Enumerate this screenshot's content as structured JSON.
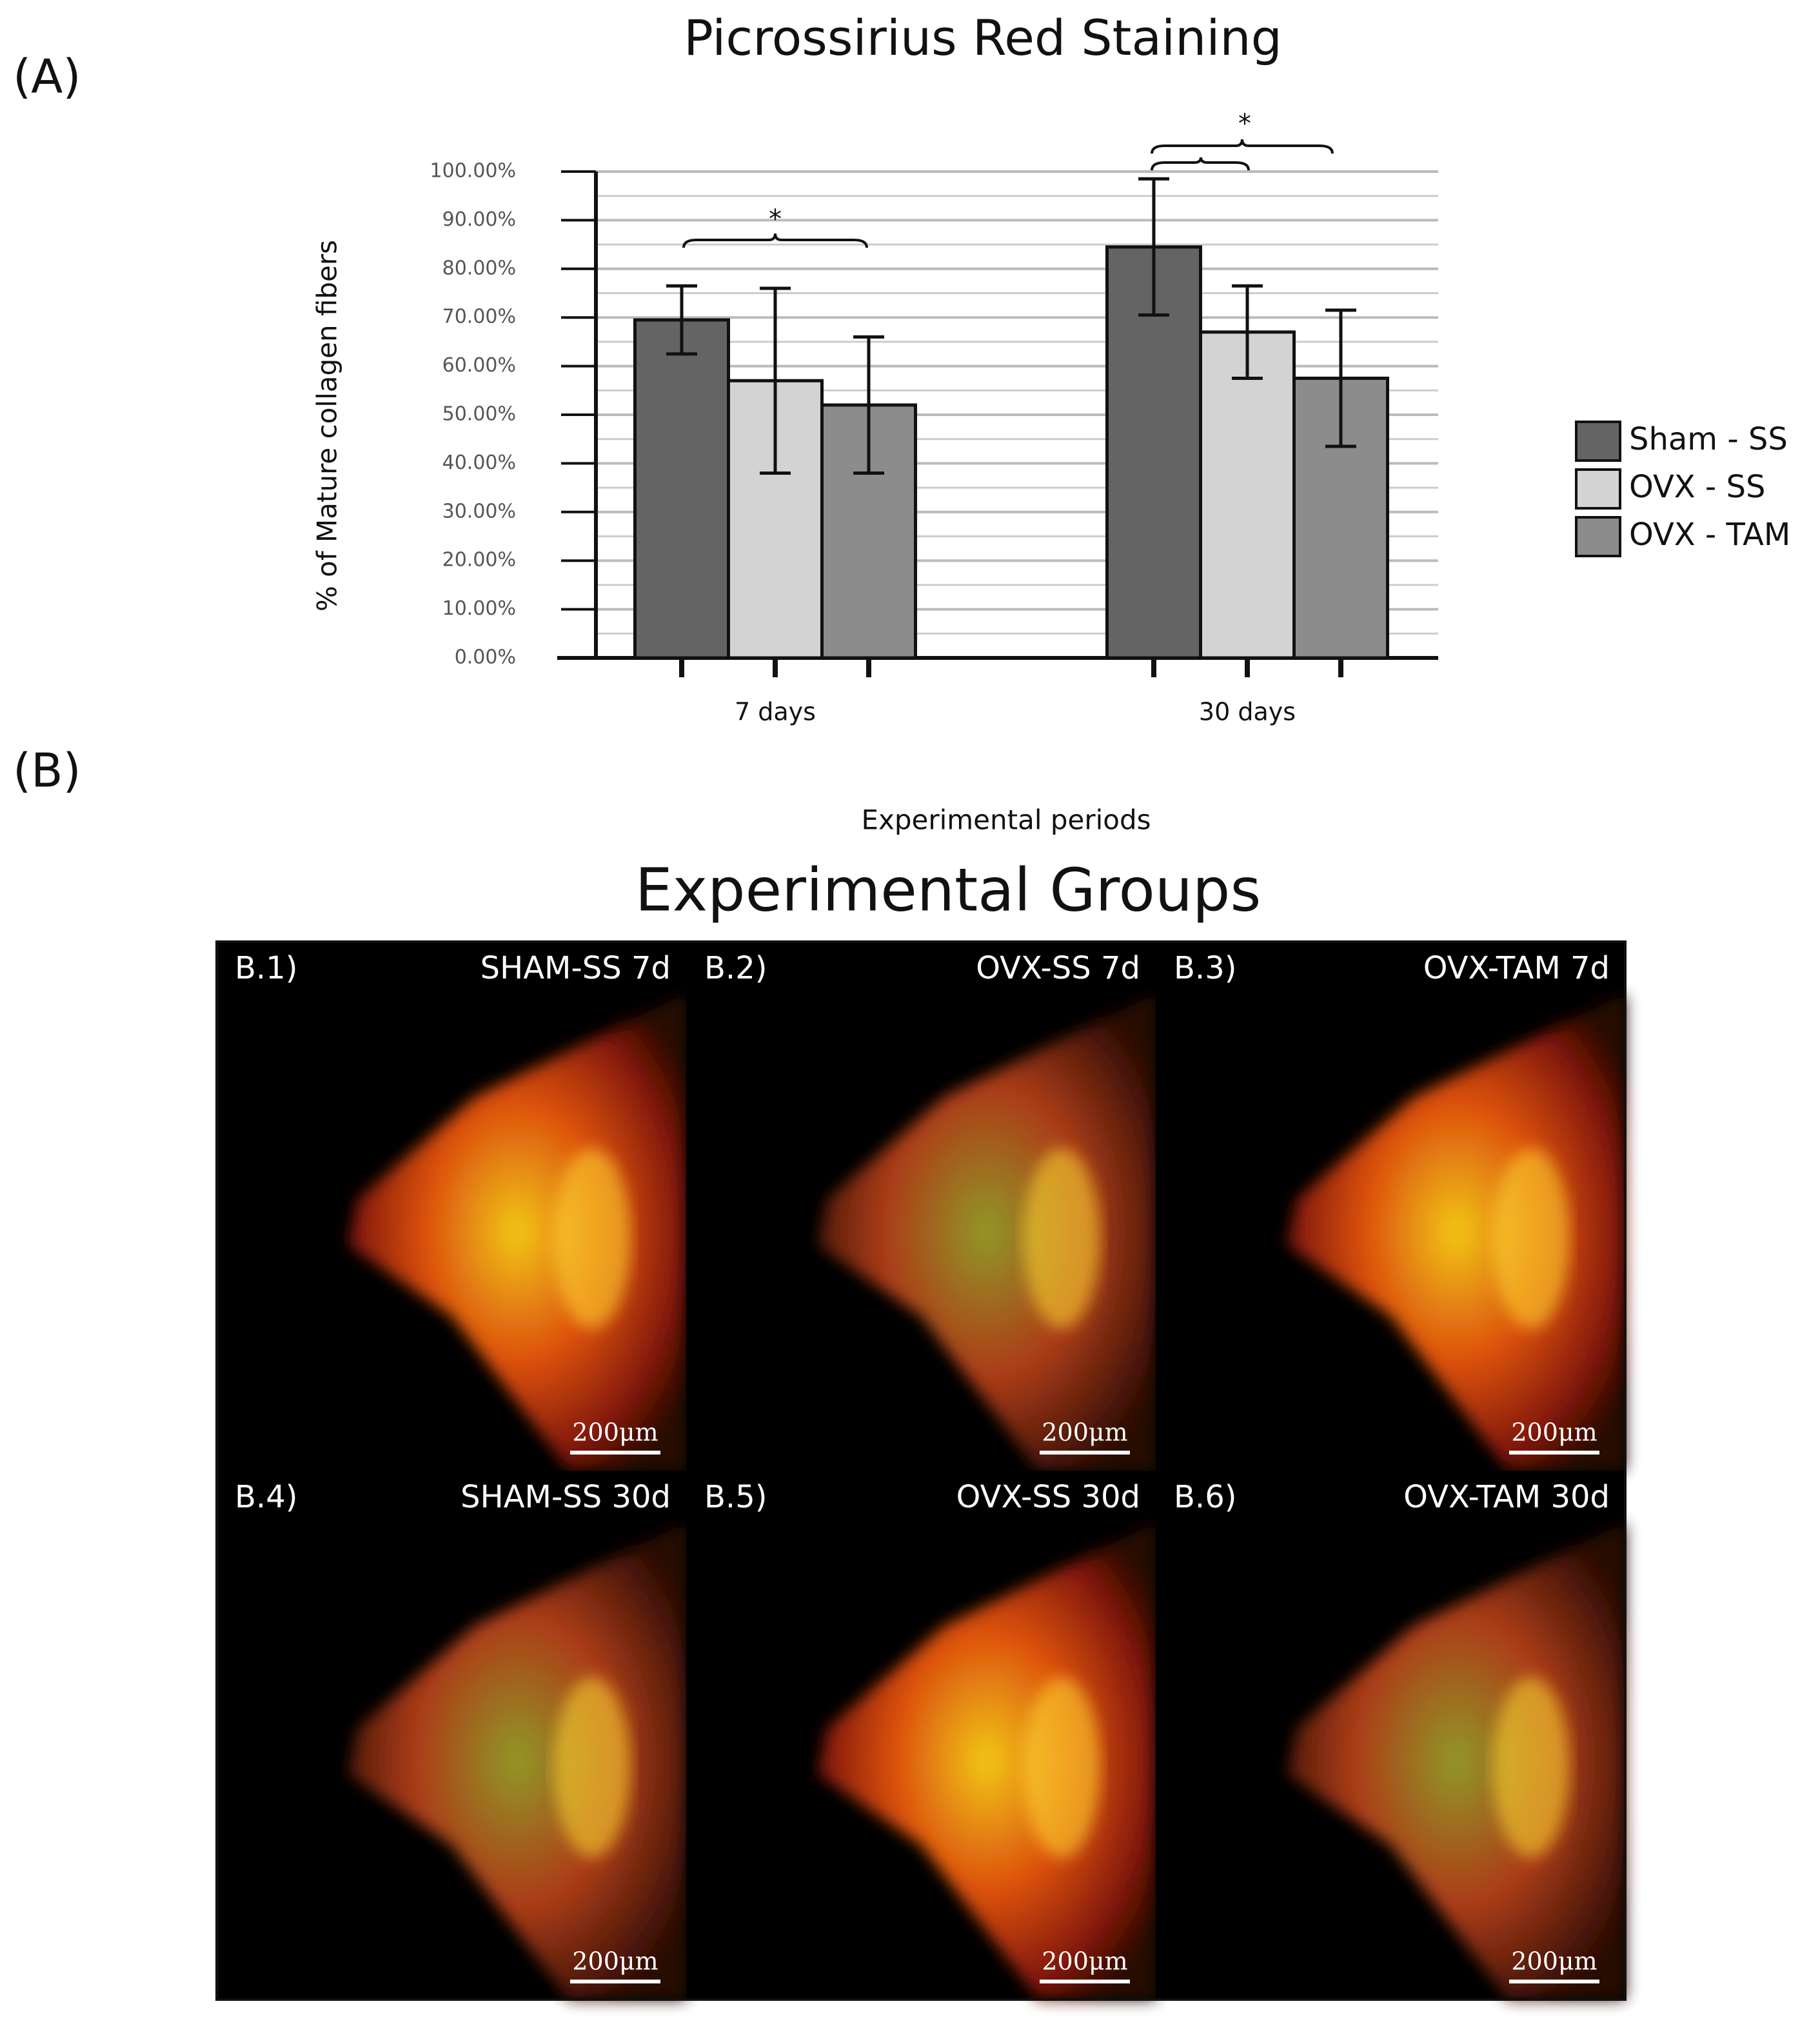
{
  "chart_data": {
    "type": "bar",
    "title": "Picrossirius Red Staining",
    "x_label": "Experimental periods",
    "y_label": "% of Mature collagen fibers",
    "categories": [
      "7 days",
      "30 days"
    ],
    "series": [
      {
        "name": "Sham - SS",
        "color": "#646464",
        "values": [
          69.5,
          84.5
        ],
        "error": [
          7,
          14
        ]
      },
      {
        "name": "OVX - SS",
        "color": "#d3d3d3",
        "values": [
          57,
          67
        ],
        "error": [
          19,
          9.5
        ]
      },
      {
        "name": "OVX - TAM",
        "color": "#8c8c8c",
        "values": [
          52,
          57.5
        ],
        "error": [
          14,
          14
        ]
      }
    ],
    "ylim": [
      0,
      100
    ],
    "yticks": [
      {
        "value": 0,
        "label": "0.00%"
      },
      {
        "value": 10,
        "label": "10.00%"
      },
      {
        "value": 20,
        "label": "20.00%"
      },
      {
        "value": 30,
        "label": "30.00%"
      },
      {
        "value": 40,
        "label": "40.00%"
      },
      {
        "value": 50,
        "label": "50.00%"
      },
      {
        "value": 60,
        "label": "60.00%"
      },
      {
        "value": 70,
        "label": "70.00%"
      },
      {
        "value": 80,
        "label": "80.00%"
      },
      {
        "value": 90,
        "label": "90.00%"
      },
      {
        "value": 100,
        "label": "100.00%"
      }
    ],
    "grid": true,
    "legend": "right",
    "annotations": [
      "*",
      "*"
    ]
  },
  "panels": {
    "a_label": "(A)",
    "b_label": "(B)",
    "b_title": "Experimental Groups",
    "images": [
      {
        "id": "B.1)",
        "label": "SHAM-SS 7d",
        "scale": "200μm"
      },
      {
        "id": "B.2)",
        "label": "OVX-SS 7d",
        "scale": "200μm"
      },
      {
        "id": "B.3)",
        "label": "OVX-TAM 7d",
        "scale": "200μm"
      },
      {
        "id": "B.4)",
        "label": "SHAM-SS 30d",
        "scale": "200μm"
      },
      {
        "id": "B.5)",
        "label": "OVX-SS 30d",
        "scale": "200μm"
      },
      {
        "id": "B.6)",
        "label": "OVX-TAM 30d",
        "scale": "200μm"
      }
    ]
  }
}
